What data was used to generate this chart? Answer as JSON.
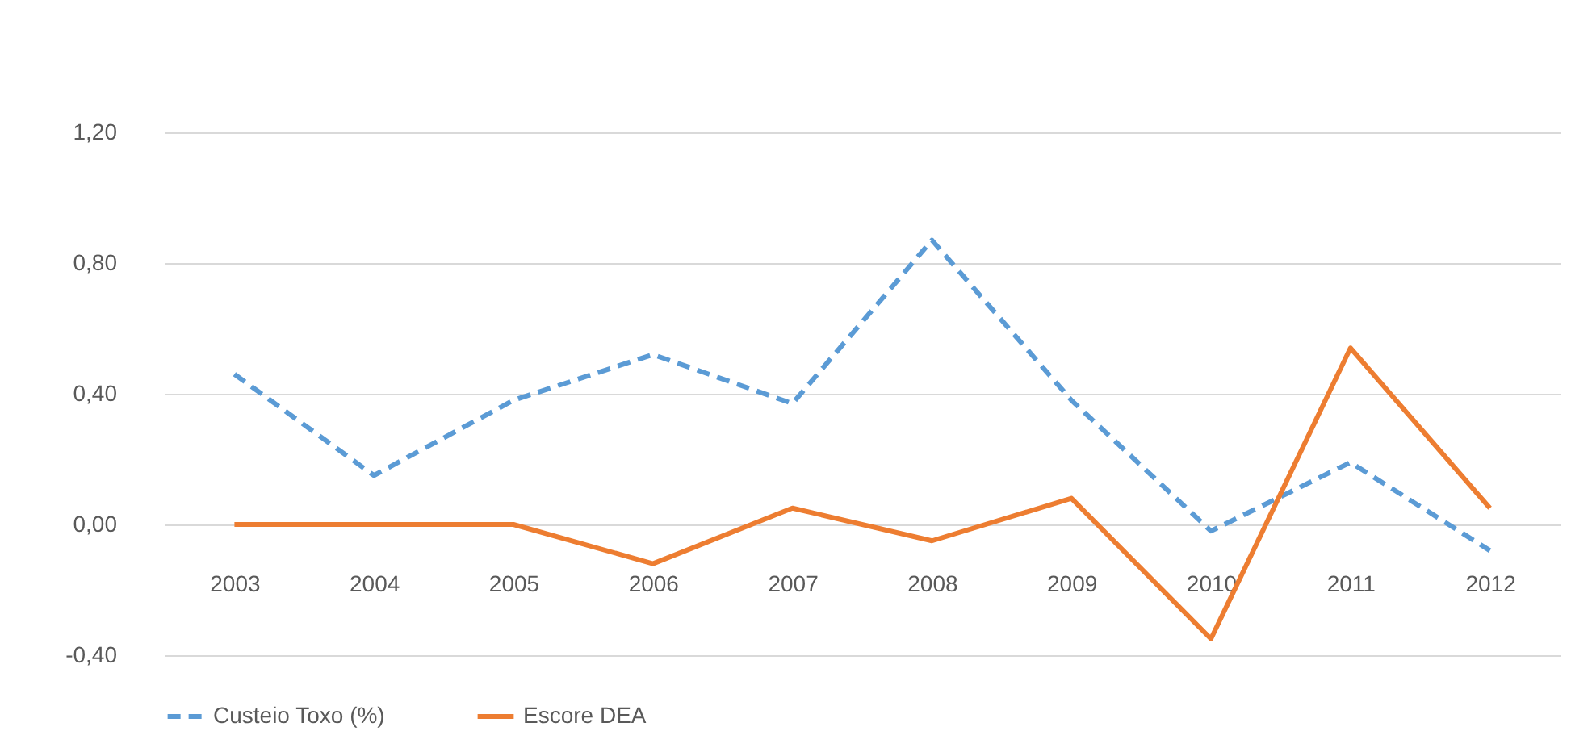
{
  "chart_data": {
    "type": "line",
    "categories": [
      "2003",
      "2004",
      "2005",
      "2006",
      "2007",
      "2008",
      "2009",
      "2010",
      "2011",
      "2012"
    ],
    "series": [
      {
        "name": "Custeio Toxo (%)",
        "color": "#5b9bd5",
        "line_style": "dashed",
        "values": [
          0.46,
          0.15,
          0.38,
          0.52,
          0.37,
          0.87,
          0.38,
          -0.02,
          0.19,
          -0.08
        ]
      },
      {
        "name": "Escore DEA",
        "color": "#ed7d31",
        "line_style": "solid",
        "values": [
          0,
          0,
          0,
          -0.12,
          0.05,
          -0.05,
          0.08,
          -0.35,
          0.54,
          0.05
        ]
      }
    ],
    "ylim": [
      -0.4,
      1.2
    ],
    "yticks": [
      {
        "value": -0.4,
        "label": "-0,40"
      },
      {
        "value": 0,
        "label": "0,00"
      },
      {
        "value": 0.4,
        "label": "0,40"
      },
      {
        "value": 0.8,
        "label": "0,80"
      },
      {
        "value": 1.2,
        "label": "1,20"
      }
    ],
    "grid": "y",
    "legend": "bottom",
    "marker": "none"
  }
}
